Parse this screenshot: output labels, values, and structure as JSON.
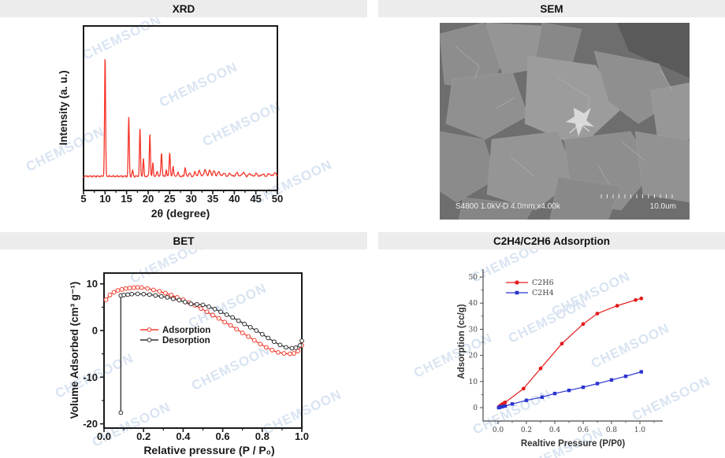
{
  "page": {
    "watermark_text": "CHEMSOON",
    "watermark_color": "#d9e4f2",
    "background": "#ffffff"
  },
  "panels": {
    "xrd": {
      "title": "XRD"
    },
    "sem": {
      "title": "SEM",
      "info_text": "S4800 1.0kV-D 4.0mm x4.00k",
      "scale_label": "10.0um"
    },
    "bet": {
      "title": "BET"
    },
    "c2": {
      "title": "C2H4/C2H6 Adsorption"
    }
  },
  "chart_data": [
    {
      "id": "xrd",
      "type": "line",
      "title": "XRD",
      "xlabel": "2θ (degree)",
      "ylabel": "Intensity (a. u.)",
      "xlim": [
        5,
        50
      ],
      "xticks": [
        5,
        10,
        15,
        20,
        25,
        30,
        35,
        40,
        45,
        50
      ],
      "yticks": [],
      "grid": false,
      "line_color": "#f5362b",
      "baseline": 0.02,
      "peaks_note": "each peak is [two-theta center, relative intensity 0-1, width]",
      "peaks": [
        [
          10.0,
          1.0,
          0.12
        ],
        [
          15.5,
          0.5,
          0.12
        ],
        [
          16.4,
          0.05,
          0.12
        ],
        [
          18.1,
          0.4,
          0.12
        ],
        [
          18.9,
          0.15,
          0.11
        ],
        [
          20.4,
          0.36,
          0.12
        ],
        [
          21.1,
          0.12,
          0.11
        ],
        [
          22.1,
          0.045,
          0.13
        ],
        [
          23.1,
          0.2,
          0.13
        ],
        [
          24.2,
          0.05,
          0.12
        ],
        [
          25.0,
          0.2,
          0.13
        ],
        [
          25.8,
          0.09,
          0.12
        ],
        [
          26.9,
          0.035,
          0.15
        ],
        [
          28.6,
          0.075,
          0.14
        ],
        [
          29.6,
          0.03,
          0.18
        ],
        [
          30.9,
          0.035,
          0.2
        ],
        [
          31.9,
          0.05,
          0.22
        ],
        [
          33.2,
          0.055,
          0.25
        ],
        [
          34.3,
          0.05,
          0.25
        ],
        [
          35.3,
          0.045,
          0.25
        ],
        [
          36.4,
          0.04,
          0.25
        ],
        [
          37.6,
          0.028,
          0.25
        ],
        [
          39.0,
          0.022,
          0.3
        ],
        [
          40.6,
          0.028,
          0.3
        ],
        [
          42.1,
          0.032,
          0.3
        ],
        [
          43.6,
          0.022,
          0.3
        ],
        [
          45.1,
          0.022,
          0.3
        ],
        [
          46.6,
          0.018,
          0.3
        ],
        [
          48.1,
          0.022,
          0.3
        ],
        [
          49.4,
          0.028,
          0.3
        ]
      ]
    },
    {
      "id": "bet",
      "type": "line",
      "title": "BET",
      "xlabel": "Relative pressure (P / P₀)",
      "ylabel": "Volume Adsorbed (cm³ g⁻¹)",
      "xlim": [
        0,
        1
      ],
      "ylim": [
        -20.9,
        12.3
      ],
      "xticks": [
        "0.0",
        "0.2",
        "0.4",
        "0.6",
        "0.8",
        "1.0"
      ],
      "yticks": [
        10,
        0,
        -10,
        -20
      ],
      "grid": false,
      "legend_position": "center-left",
      "series": [
        {
          "name": "Adsorption",
          "color": "#ef3b2c",
          "marker": "circle-open",
          "points": [
            [
              0.01,
              6.6
            ],
            [
              0.03,
              7.6
            ],
            [
              0.05,
              8.2
            ],
            [
              0.07,
              8.6
            ],
            [
              0.09,
              8.8
            ],
            [
              0.11,
              9.0
            ],
            [
              0.13,
              9.1
            ],
            [
              0.15,
              9.2
            ],
            [
              0.17,
              9.25
            ],
            [
              0.19,
              9.2
            ],
            [
              0.22,
              9.0
            ],
            [
              0.25,
              8.7
            ],
            [
              0.28,
              8.4
            ],
            [
              0.31,
              8.0
            ],
            [
              0.34,
              7.6
            ],
            [
              0.37,
              7.1
            ],
            [
              0.4,
              6.6
            ],
            [
              0.43,
              6.0
            ],
            [
              0.46,
              5.4
            ],
            [
              0.49,
              4.7
            ],
            [
              0.52,
              4.0
            ],
            [
              0.55,
              3.3
            ],
            [
              0.58,
              2.6
            ],
            [
              0.61,
              1.8
            ],
            [
              0.64,
              1.1
            ],
            [
              0.67,
              0.3
            ],
            [
              0.7,
              -0.5
            ],
            [
              0.73,
              -1.3
            ],
            [
              0.76,
              -2.1
            ],
            [
              0.79,
              -2.9
            ],
            [
              0.82,
              -3.6
            ],
            [
              0.85,
              -4.2
            ],
            [
              0.88,
              -4.7
            ],
            [
              0.91,
              -4.9
            ],
            [
              0.94,
              -5.0
            ],
            [
              0.96,
              -4.9
            ],
            [
              0.98,
              -4.4
            ],
            [
              1.0,
              -3.2
            ]
          ]
        },
        {
          "name": "Desorption",
          "color": "#2e2e2e",
          "marker": "circle-open",
          "points": [
            [
              0.085,
              -17.6
            ],
            [
              0.085,
              7.5
            ],
            [
              0.1,
              7.6
            ],
            [
              0.12,
              7.7
            ],
            [
              0.14,
              7.8
            ],
            [
              0.17,
              7.85
            ],
            [
              0.2,
              7.8
            ],
            [
              0.23,
              7.7
            ],
            [
              0.26,
              7.5
            ],
            [
              0.29,
              7.3
            ],
            [
              0.32,
              7.1
            ],
            [
              0.35,
              6.8
            ],
            [
              0.38,
              6.5
            ],
            [
              0.41,
              6.1
            ],
            [
              0.44,
              5.7
            ],
            [
              0.47,
              5.6
            ],
            [
              0.5,
              5.5
            ],
            [
              0.53,
              5.1
            ],
            [
              0.56,
              4.6
            ],
            [
              0.59,
              4.0
            ],
            [
              0.62,
              3.4
            ],
            [
              0.65,
              2.8
            ],
            [
              0.68,
              2.1
            ],
            [
              0.71,
              1.4
            ],
            [
              0.74,
              0.7
            ],
            [
              0.77,
              0.0
            ],
            [
              0.8,
              -0.8
            ],
            [
              0.83,
              -1.6
            ],
            [
              0.86,
              -2.4
            ],
            [
              0.89,
              -3.1
            ],
            [
              0.92,
              -3.6
            ],
            [
              0.95,
              -3.8
            ],
            [
              0.97,
              -3.7
            ],
            [
              0.99,
              -3.2
            ],
            [
              1.0,
              -2.2
            ]
          ]
        }
      ]
    },
    {
      "id": "c2",
      "type": "line",
      "title": "C2H4/C2H6 Adsorption",
      "xlabel": "Realtive Pressure (P/P0)",
      "ylabel": "Adsorption (cc/g)",
      "xlim": [
        -0.1,
        1.15
      ],
      "ylim": [
        -5,
        52
      ],
      "xticks": [
        "0.0",
        "0.2",
        "0.4",
        "0.6",
        "0.8",
        "1.0"
      ],
      "yticks": [
        0,
        10,
        20,
        30,
        40,
        50
      ],
      "grid": false,
      "legend_position": "top-left",
      "series": [
        {
          "name": "C2H6",
          "color": "#e31a1c",
          "marker": "circle",
          "points": [
            [
              0.005,
              0.2
            ],
            [
              0.01,
              0.5
            ],
            [
              0.02,
              0.9
            ],
            [
              0.03,
              1.3
            ],
            [
              0.04,
              1.6
            ],
            [
              0.05,
              2.0
            ],
            [
              0.18,
              7.3
            ],
            [
              0.3,
              15.0
            ],
            [
              0.45,
              24.5
            ],
            [
              0.6,
              32.0
            ],
            [
              0.7,
              36.0
            ],
            [
              0.84,
              39.0
            ],
            [
              0.97,
              41.2
            ],
            [
              1.01,
              41.8
            ]
          ]
        },
        {
          "name": "C2H4",
          "color": "#2b35cf",
          "marker": "square",
          "points": [
            [
              0.005,
              0.0
            ],
            [
              0.01,
              0.1
            ],
            [
              0.02,
              0.3
            ],
            [
              0.03,
              0.4
            ],
            [
              0.05,
              0.6
            ],
            [
              0.1,
              1.4
            ],
            [
              0.2,
              2.8
            ],
            [
              0.31,
              4.0
            ],
            [
              0.4,
              5.4
            ],
            [
              0.5,
              6.6
            ],
            [
              0.6,
              7.8
            ],
            [
              0.7,
              9.2
            ],
            [
              0.8,
              10.6
            ],
            [
              0.9,
              12.0
            ],
            [
              1.01,
              13.7
            ]
          ]
        }
      ]
    }
  ]
}
